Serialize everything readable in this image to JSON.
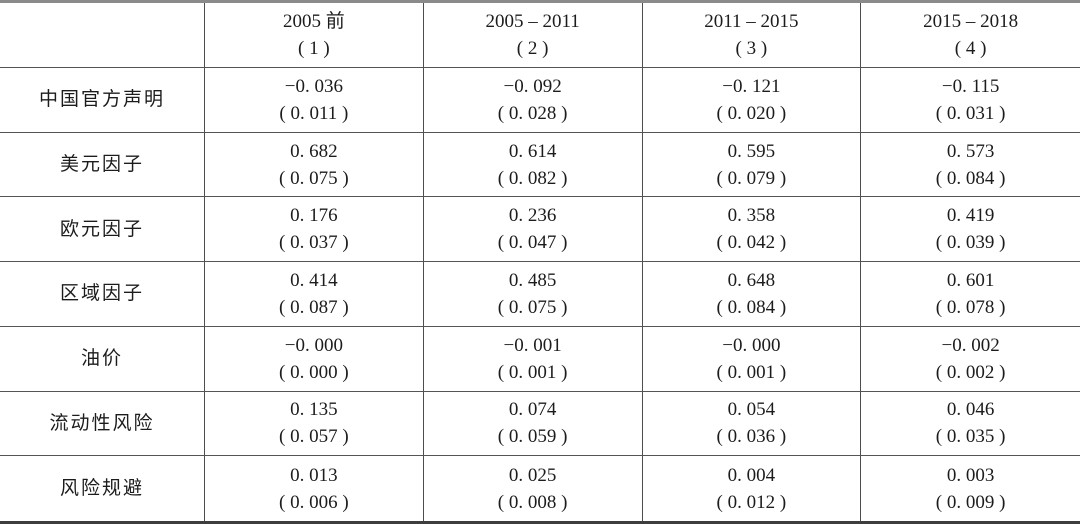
{
  "table": {
    "columns": [
      {
        "period": "2005 前",
        "number": "( 1 )"
      },
      {
        "period": "2005 – 2011",
        "number": "( 2 )"
      },
      {
        "period": "2011 – 2015",
        "number": "( 3 )"
      },
      {
        "period": "2015 – 2018",
        "number": "( 4 )"
      }
    ],
    "rows": [
      {
        "label": "中国官方声明",
        "cells": [
          {
            "value": "−0. 036",
            "se": "( 0. 011 )"
          },
          {
            "value": "−0. 092",
            "se": "( 0. 028 )"
          },
          {
            "value": "−0. 121",
            "se": "( 0. 020 )"
          },
          {
            "value": "−0. 115",
            "se": "( 0. 031 )"
          }
        ]
      },
      {
        "label": "美元因子",
        "cells": [
          {
            "value": "0. 682",
            "se": "( 0. 075 )"
          },
          {
            "value": "0. 614",
            "se": "( 0. 082 )"
          },
          {
            "value": "0. 595",
            "se": "( 0. 079 )"
          },
          {
            "value": "0. 573",
            "se": "( 0. 084 )"
          }
        ]
      },
      {
        "label": "欧元因子",
        "cells": [
          {
            "value": "0. 176",
            "se": "( 0. 037 )"
          },
          {
            "value": "0. 236",
            "se": "( 0. 047 )"
          },
          {
            "value": "0. 358",
            "se": "( 0. 042 )"
          },
          {
            "value": "0. 419",
            "se": "( 0. 039 )"
          }
        ]
      },
      {
        "label": "区域因子",
        "cells": [
          {
            "value": "0. 414",
            "se": "( 0. 087 )"
          },
          {
            "value": "0. 485",
            "se": "( 0. 075 )"
          },
          {
            "value": "0. 648",
            "se": "( 0. 084 )"
          },
          {
            "value": "0. 601",
            "se": "( 0. 078 )"
          }
        ]
      },
      {
        "label": "油价",
        "cells": [
          {
            "value": "−0. 000",
            "se": "( 0. 000 )"
          },
          {
            "value": "−0. 001",
            "se": "( 0. 001 )"
          },
          {
            "value": "−0. 000",
            "se": "( 0. 001 )"
          },
          {
            "value": "−0. 002",
            "se": "( 0. 002 )"
          }
        ]
      },
      {
        "label": "流动性风险",
        "cells": [
          {
            "value": "0. 135",
            "se": "( 0. 057 )"
          },
          {
            "value": "0. 074",
            "se": "( 0. 059 )"
          },
          {
            "value": "0. 054",
            "se": "( 0. 036 )"
          },
          {
            "value": "0. 046",
            "se": "( 0. 035 )"
          }
        ]
      },
      {
        "label": "风险规避",
        "cells": [
          {
            "value": "0. 013",
            "se": "( 0. 006 )"
          },
          {
            "value": "0. 025",
            "se": "( 0. 008 )"
          },
          {
            "value": "0. 004",
            "se": "( 0. 012 )"
          },
          {
            "value": "0. 003",
            "se": "( 0. 009 )"
          }
        ]
      }
    ]
  }
}
